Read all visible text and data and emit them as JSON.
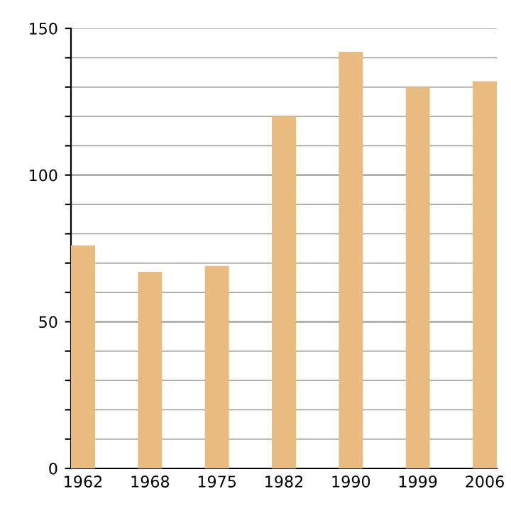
{
  "chart_data": {
    "type": "bar",
    "categories": [
      "1962",
      "1968",
      "1975",
      "1982",
      "1990",
      "1999",
      "2006"
    ],
    "values": [
      76,
      67,
      69,
      120,
      142,
      130,
      132
    ],
    "color": "#e8bb80",
    "ylim": [
      0,
      150
    ],
    "yticks": [
      0,
      {
        "value": 10,
        "label": null
      },
      {
        "value": 20,
        "label": null
      },
      {
        "value": 30,
        "label": null
      },
      {
        "value": 40,
        "label": null
      },
      50,
      {
        "value": 60,
        "label": null
      },
      {
        "value": 70,
        "label": null
      },
      {
        "value": 80,
        "label": null
      },
      {
        "value": 90,
        "label": null
      },
      100,
      {
        "value": 110,
        "label": null
      },
      {
        "value": 120,
        "label": null
      },
      {
        "value": 130,
        "label": null
      },
      {
        "value": 140,
        "label": null
      },
      150
    ],
    "grid": "y"
  }
}
